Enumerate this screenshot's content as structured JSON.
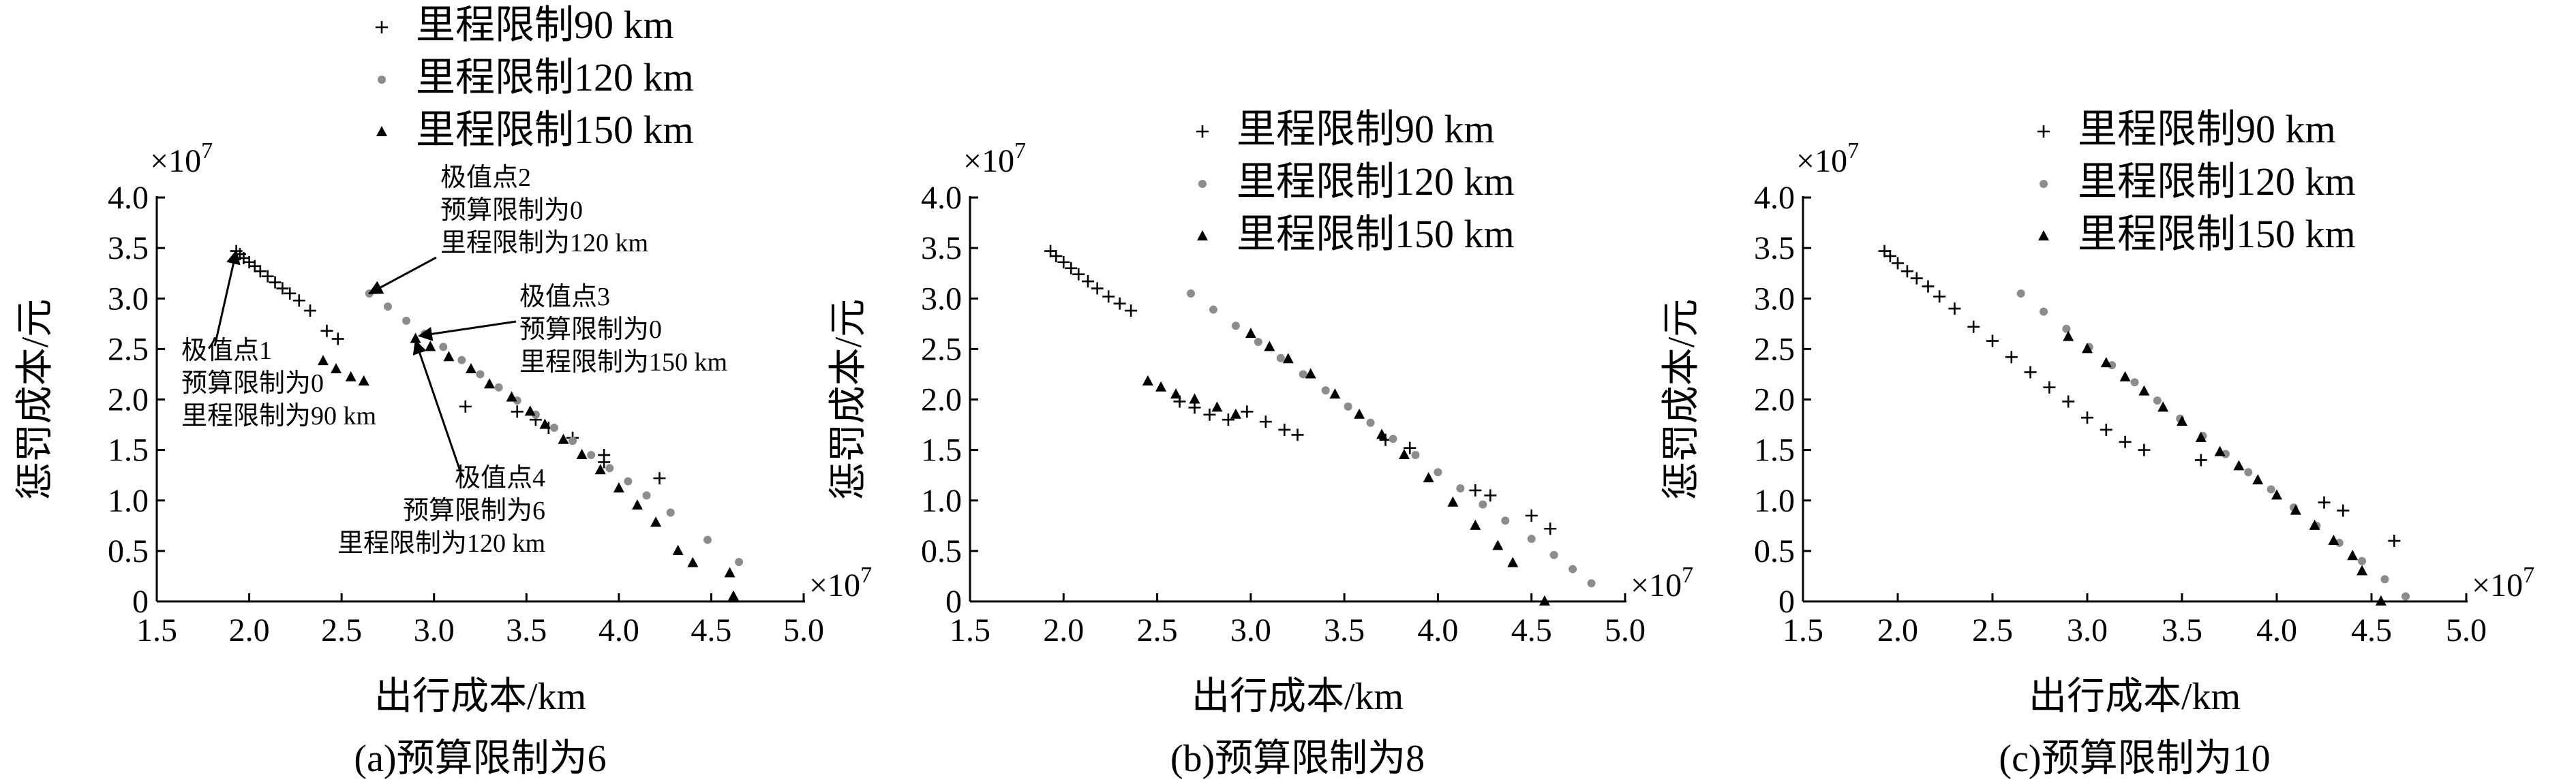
{
  "chart_data": [
    {
      "type": "scatter",
      "caption": "(a)预算限制为6",
      "x_label": "出行成本/km",
      "y_label": "惩罚成本/元",
      "x_offset": {
        "base": "×10",
        "exp": "7"
      },
      "y_offset": {
        "base": "×10",
        "exp": "7"
      },
      "xlim": [
        1.5,
        5.0
      ],
      "ylim": [
        0,
        4.0
      ],
      "xticks": [
        1.5,
        {
          "value": 2,
          "label": "2.0"
        },
        2.5,
        {
          "value": 3,
          "label": "3.0"
        },
        3.5,
        {
          "value": 4,
          "label": "4.0"
        },
        4.5,
        {
          "value": 5,
          "label": "5.0"
        }
      ],
      "yticks": [
        0,
        0.5,
        {
          "value": 1,
          "label": "1.0"
        },
        1.5,
        {
          "value": 2,
          "label": "2.0"
        },
        2.5,
        {
          "value": 3,
          "label": "3.0"
        },
        3.5,
        {
          "value": 4,
          "label": "4.0"
        }
      ],
      "legend": "above",
      "series": [
        {
          "name": "里程限制90 km",
          "color": "#000000",
          "marker": "plus",
          "x": [
            1.93,
            1.95,
            1.97,
            2.0,
            2.03,
            2.06,
            2.1,
            2.14,
            2.18,
            2.22,
            2.27,
            2.33,
            2.42,
            2.48,
            3.17,
            3.45,
            3.55,
            3.62,
            3.75,
            3.92,
            3.92,
            4.22
          ],
          "values": [
            3.47,
            3.44,
            3.4,
            3.36,
            3.32,
            3.27,
            3.22,
            3.16,
            3.1,
            3.05,
            2.98,
            2.88,
            2.68,
            2.6,
            1.93,
            1.88,
            1.8,
            1.72,
            1.62,
            1.45,
            1.38,
            1.22
          ]
        },
        {
          "name": "里程限制120 km",
          "color": "#8c8c8c",
          "marker": "circle",
          "x": [
            2.65,
            2.75,
            2.85,
            2.95,
            3.05,
            3.15,
            3.25,
            3.35,
            3.45,
            3.55,
            3.65,
            3.75,
            3.85,
            3.95,
            4.05,
            4.15,
            4.28,
            4.48,
            4.65
          ],
          "values": [
            3.05,
            2.92,
            2.78,
            2.65,
            2.52,
            2.39,
            2.25,
            2.12,
            1.99,
            1.85,
            1.72,
            1.59,
            1.45,
            1.32,
            1.19,
            1.05,
            0.88,
            0.61,
            0.39
          ]
        },
        {
          "name": "里程限制150 km",
          "color": "#000000",
          "marker": "triangle",
          "x": [
            2.4,
            2.47,
            2.55,
            2.62,
            2.9,
            2.98,
            3.08,
            3.2,
            3.3,
            3.42,
            3.52,
            3.6,
            3.7,
            3.8,
            3.9,
            4.0,
            4.1,
            4.2,
            4.32,
            4.4,
            4.6,
            4.62
          ],
          "values": [
            2.38,
            2.3,
            2.22,
            2.18,
            2.6,
            2.52,
            2.42,
            2.3,
            2.15,
            2.02,
            1.88,
            1.75,
            1.6,
            1.45,
            1.3,
            1.12,
            0.95,
            0.78,
            0.5,
            0.38,
            0.28,
            0.05
          ]
        }
      ],
      "annotations": [
        {
          "lines": [
            "极值点1",
            "预算限制为0",
            "里程限制为90 km"
          ],
          "xy": [
            1.93,
            3.47
          ]
        },
        {
          "lines": [
            "极值点2",
            "预算限制为0",
            "里程限制为120 km"
          ],
          "xy": [
            2.65,
            3.05
          ]
        },
        {
          "lines": [
            "极值点3",
            "预算限制为0",
            "里程限制为150 km"
          ],
          "xy": [
            2.92,
            2.63
          ]
        },
        {
          "lines": [
            "极值点4",
            "预算限制为6",
            "里程限制为120 km"
          ],
          "xy": [
            2.9,
            2.58
          ]
        }
      ]
    },
    {
      "type": "scatter",
      "caption": "(b)预算限制为8",
      "x_label": "出行成本/km",
      "y_label": "惩罚成本/元",
      "x_offset": {
        "base": "×10",
        "exp": "7"
      },
      "y_offset": {
        "base": "×10",
        "exp": "7"
      },
      "xlim": [
        1.5,
        5.0
      ],
      "ylim": [
        0,
        4.0
      ],
      "xticks": [
        1.5,
        {
          "value": 2,
          "label": "2.0"
        },
        2.5,
        {
          "value": 3,
          "label": "3.0"
        },
        3.5,
        {
          "value": 4,
          "label": "4.0"
        },
        4.5,
        {
          "value": 5,
          "label": "5.0"
        }
      ],
      "yticks": [
        0,
        0.5,
        {
          "value": 1,
          "label": "1.0"
        },
        1.5,
        {
          "value": 2,
          "label": "2.0"
        },
        2.5,
        {
          "value": 3,
          "label": "3.0"
        },
        3.5,
        {
          "value": 4,
          "label": "4.0"
        }
      ],
      "legend": "upper right",
      "series": [
        {
          "name": "里程限制90 km",
          "color": "#000000",
          "marker": "plus",
          "x": [
            1.93,
            1.96,
            2.0,
            2.04,
            2.08,
            2.13,
            2.18,
            2.24,
            2.3,
            2.36,
            2.62,
            2.7,
            2.78,
            2.88,
            2.98,
            3.08,
            3.18,
            3.25,
            3.72,
            3.85,
            4.2,
            4.28,
            4.5,
            4.6
          ],
          "values": [
            3.47,
            3.42,
            3.36,
            3.3,
            3.24,
            3.17,
            3.1,
            3.02,
            2.95,
            2.88,
            1.98,
            1.92,
            1.85,
            1.8,
            1.88,
            1.78,
            1.7,
            1.65,
            1.6,
            1.52,
            1.1,
            1.05,
            0.85,
            0.72
          ]
        },
        {
          "name": "里程限制120 km",
          "color": "#8c8c8c",
          "marker": "circle",
          "x": [
            2.68,
            2.8,
            2.92,
            3.04,
            3.16,
            3.28,
            3.4,
            3.52,
            3.64,
            3.76,
            3.88,
            4.0,
            4.12,
            4.24,
            4.36,
            4.5,
            4.62,
            4.72,
            4.82
          ],
          "values": [
            3.05,
            2.89,
            2.73,
            2.57,
            2.41,
            2.25,
            2.09,
            1.93,
            1.77,
            1.61,
            1.45,
            1.28,
            1.12,
            0.96,
            0.8,
            0.62,
            0.46,
            0.32,
            0.18
          ]
        },
        {
          "name": "里程限制150 km",
          "color": "#000000",
          "marker": "triangle",
          "x": [
            2.45,
            2.52,
            2.6,
            2.7,
            2.82,
            2.92,
            3.0,
            3.1,
            3.2,
            3.32,
            3.45,
            3.58,
            3.7,
            3.82,
            3.95,
            4.08,
            4.2,
            4.32,
            4.4,
            4.57
          ],
          "values": [
            2.18,
            2.12,
            2.05,
            2.0,
            1.92,
            1.85,
            2.65,
            2.52,
            2.4,
            2.25,
            2.05,
            1.85,
            1.65,
            1.45,
            1.22,
            0.98,
            0.75,
            0.55,
            0.38,
            0.0
          ]
        }
      ]
    },
    {
      "type": "scatter",
      "caption": "(c)预算限制为10",
      "x_label": "出行成本/km",
      "y_label": "惩罚成本/元",
      "x_offset": {
        "base": "×10",
        "exp": "7"
      },
      "y_offset": {
        "base": "×10",
        "exp": "7"
      },
      "xlim": [
        1.5,
        5.0
      ],
      "ylim": [
        0,
        4.0
      ],
      "xticks": [
        1.5,
        {
          "value": 2,
          "label": "2.0"
        },
        2.5,
        {
          "value": 3,
          "label": "3.0"
        },
        3.5,
        {
          "value": 4,
          "label": "4.0"
        },
        4.5,
        {
          "value": 5,
          "label": "5.0"
        }
      ],
      "yticks": [
        0,
        0.5,
        {
          "value": 1,
          "label": "1.0"
        },
        1.5,
        {
          "value": 2,
          "label": "2.0"
        },
        2.5,
        {
          "value": 3,
          "label": "3.0"
        },
        3.5,
        {
          "value": 4,
          "label": "4.0"
        }
      ],
      "legend": "upper right",
      "series": [
        {
          "name": "里程限制90 km",
          "color": "#000000",
          "marker": "plus",
          "x": [
            1.93,
            1.96,
            2.0,
            2.05,
            2.1,
            2.16,
            2.22,
            2.3,
            2.4,
            2.5,
            2.6,
            2.7,
            2.8,
            2.9,
            3.0,
            3.1,
            3.2,
            3.3,
            3.6,
            4.25,
            4.35,
            4.62
          ],
          "values": [
            3.47,
            3.42,
            3.35,
            3.27,
            3.2,
            3.12,
            3.02,
            2.9,
            2.72,
            2.58,
            2.42,
            2.27,
            2.12,
            1.98,
            1.82,
            1.7,
            1.58,
            1.5,
            1.4,
            0.98,
            0.9,
            0.6
          ]
        },
        {
          "name": "里程限制120 km",
          "color": "#8c8c8c",
          "marker": "circle",
          "x": [
            2.65,
            2.77,
            2.89,
            3.01,
            3.13,
            3.25,
            3.37,
            3.49,
            3.61,
            3.73,
            3.85,
            3.97,
            4.09,
            4.21,
            4.33,
            4.45,
            4.57,
            4.68
          ],
          "values": [
            3.05,
            2.87,
            2.7,
            2.52,
            2.34,
            2.17,
            1.99,
            1.81,
            1.64,
            1.46,
            1.28,
            1.11,
            0.93,
            0.75,
            0.58,
            0.4,
            0.22,
            0.05
          ]
        },
        {
          "name": "里程限制150 km",
          "color": "#000000",
          "marker": "triangle",
          "x": [
            2.9,
            3.0,
            3.1,
            3.2,
            3.3,
            3.4,
            3.5,
            3.6,
            3.7,
            3.8,
            3.9,
            4.0,
            4.1,
            4.2,
            4.3,
            4.4,
            4.45,
            4.55
          ],
          "values": [
            2.62,
            2.5,
            2.36,
            2.22,
            2.08,
            1.92,
            1.78,
            1.62,
            1.48,
            1.34,
            1.2,
            1.05,
            0.9,
            0.75,
            0.6,
            0.45,
            0.3,
            0.0
          ]
        }
      ]
    }
  ]
}
